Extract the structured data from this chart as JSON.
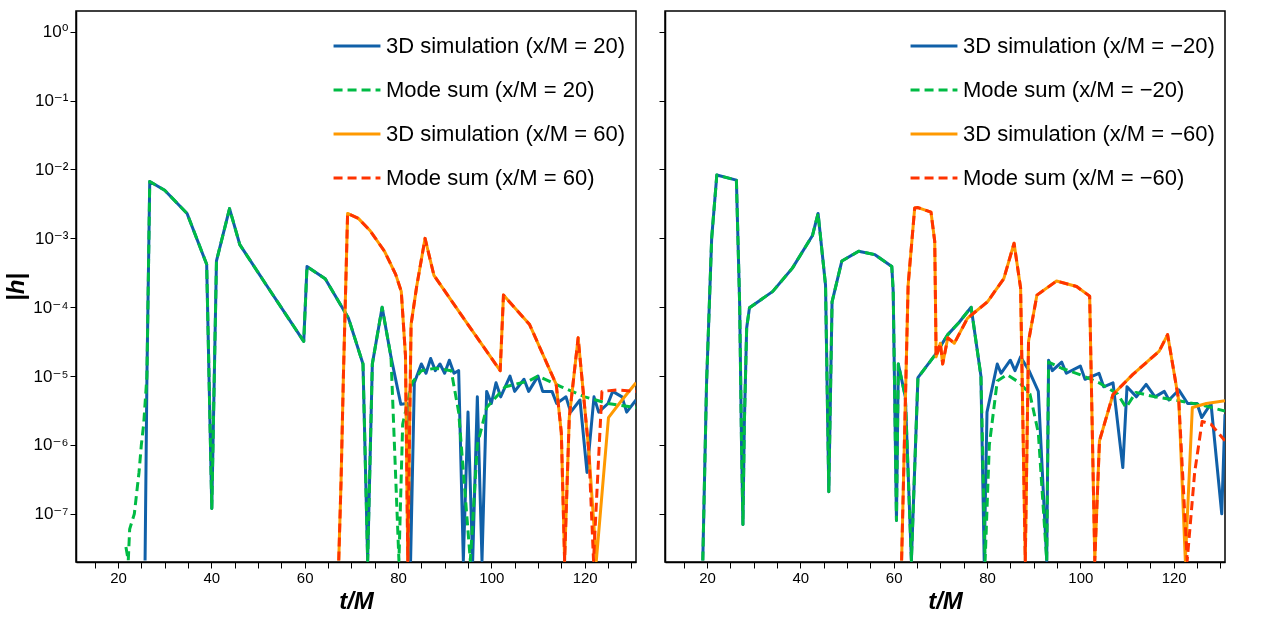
{
  "chart_data": [
    {
      "type": "line",
      "xlabel": "t/M",
      "ylabel": "|h|",
      "log": "y",
      "legend": "top right",
      "grid": false,
      "xlim": [
        11,
        131
      ],
      "xticks": [
        {
          "value": 15,
          "label": null
        },
        20,
        {
          "value": 25,
          "label": null
        },
        {
          "value": 30,
          "label": null
        },
        {
          "value": 35,
          "label": null
        },
        40,
        {
          "value": 45,
          "label": null
        },
        {
          "value": 50,
          "label": null
        },
        {
          "value": 55,
          "label": null
        },
        60,
        {
          "value": 65,
          "label": null
        },
        {
          "value": 70,
          "label": null
        },
        {
          "value": 75,
          "label": null
        },
        80,
        {
          "value": 85,
          "label": null
        },
        {
          "value": 90,
          "label": null
        },
        {
          "value": 95,
          "label": null
        },
        100,
        {
          "value": 105,
          "label": null
        },
        {
          "value": 110,
          "label": null
        },
        {
          "value": 115,
          "label": null
        },
        120,
        {
          "value": 125,
          "label": null
        },
        {
          "value": 130,
          "label": null
        }
      ],
      "ylim": [
        2e-08,
        2
      ],
      "yticks": [
        {
          "value": 1e-07,
          "label": "10⁻⁷"
        },
        {
          "value": 1e-06,
          "label": "10⁻⁶"
        },
        {
          "value": 1e-05,
          "label": "10⁻⁵"
        },
        {
          "value": 0.0001,
          "label": "10⁻⁴"
        },
        {
          "value": 0.001,
          "label": "10⁻³"
        },
        {
          "value": 0.01,
          "label": "10⁻²"
        },
        {
          "value": 0.1,
          "label": "10⁻¹"
        },
        {
          "value": 1,
          "label": "10⁰"
        }
      ],
      "series": [
        {
          "name": "3D simulation (x/M = 20)",
          "color": "#1060a8",
          "line_style": "solid",
          "x": [
            25.8,
            26.2,
            26.8,
            30,
            34.8,
            39.0,
            40.1,
            41.1,
            43.9,
            46.1,
            52,
            59.8,
            60.5,
            64.4,
            69.4,
            72.5,
            73.5,
            74.5,
            76.6,
            78.5,
            80.6,
            82.0,
            82.7,
            83.5,
            85,
            86,
            87,
            88,
            89,
            90,
            91,
            92,
            93,
            94,
            95,
            96,
            97,
            98,
            99,
            100,
            101,
            102,
            104,
            105,
            107,
            108,
            110,
            111,
            113,
            114,
            116,
            117,
            119,
            120.5,
            122,
            123,
            125,
            126,
            128,
            129,
            131
          ],
          "values": [
            2.1e-08,
            1e-05,
            0.0067,
            0.005,
            0.0023,
            0.00042,
            1.2e-07,
            0.00047,
            0.0027,
            0.00081,
            0.0002,
            3.2e-05,
            0.00039,
            0.00026,
            6.9e-05,
            1.5e-05,
            2.1e-08,
            1.5e-05,
            0.0001,
            1.9e-05,
            3.9e-06,
            4e-06,
            2.1e-08,
            8e-06,
            1.5e-05,
            1.1e-05,
            1.8e-05,
            1.2e-05,
            1.5e-05,
            1.1e-05,
            1.7e-05,
            1.1e-05,
            1.2e-05,
            2.1e-08,
            3e-06,
            2.1e-08,
            5e-06,
            2.1e-08,
            6e-06,
            4e-06,
            8e-06,
            5e-06,
            1e-05,
            6e-06,
            9e-06,
            6e-06,
            1e-05,
            6e-06,
            6e-06,
            4e-06,
            5e-06,
            3e-06,
            4.5e-06,
            4e-07,
            5e-06,
            3e-06,
            4e-06,
            6e-06,
            5e-06,
            3e-06,
            4.5e-06
          ]
        },
        {
          "name": "Mode sum (x/M = 20)",
          "color": "#00bb44",
          "line_style": "dashed",
          "x": [
            21.7,
            22.2,
            22.5,
            23.5,
            24.5,
            25,
            25.5,
            26.2,
            26.8,
            30,
            34.8,
            39.0,
            40.1,
            41.1,
            43.9,
            46.1,
            52,
            59.8,
            60.5,
            64.4,
            69.4,
            72.5,
            73.5,
            74.5,
            76.6,
            78.5,
            80.2,
            81.0,
            83,
            85,
            88,
            91.4,
            93,
            95.5,
            97,
            99,
            103,
            108,
            110,
            115,
            120,
            125,
            131
          ],
          "values": [
            3.3e-08,
            2.1e-08,
            6e-08,
            1e-07,
            4e-07,
            1e-06,
            2e-06,
            1e-05,
            0.0067,
            0.005,
            0.0023,
            0.00042,
            1.2e-07,
            0.00047,
            0.0027,
            0.00081,
            0.0002,
            3.2e-05,
            0.00039,
            0.00026,
            6.9e-05,
            1.5e-05,
            2.1e-08,
            1.5e-05,
            0.0001,
            1.9e-05,
            2.1e-08,
            2e-06,
            8e-06,
            1.2e-05,
            1.3e-05,
            1.2e-05,
            3e-06,
            2.1e-08,
            1e-06,
            3.5e-06,
            7e-06,
            8.5e-06,
            1e-05,
            7e-06,
            5e-06,
            4e-06,
            3.5e-06
          ]
        },
        {
          "name": "3D simulation (x/M = 60)",
          "color": "#ff9900",
          "line_style": "solid",
          "x": [
            67.3,
            67.8,
            68.3,
            69.2,
            71.5,
            74,
            77.1,
            79.5,
            80.7,
            81.6,
            82.1,
            82.8,
            84,
            85.8,
            87.7,
            95,
            101.9,
            102.6,
            108.2,
            113.9,
            115.0,
            115.7,
            116.7,
            118.6,
            120.9,
            122.5,
            125.1,
            128,
            131
          ],
          "values": [
            2.1e-08,
            3e-07,
            1e-05,
            0.0023,
            0.00195,
            0.0013,
            0.00065,
            0.0003,
            0.00017,
            2e-05,
            2.1e-08,
            5.6e-05,
            0.0002,
            0.001,
            0.00029,
            5.6e-05,
            1.2e-05,
            0.00015,
            5.6e-05,
            7.6e-06,
            1.5e-06,
            2.1e-08,
            2.5e-06,
            3.6e-05,
            8e-07,
            2.1e-08,
            2.5e-06,
            4.5e-06,
            8e-06
          ]
        },
        {
          "name": "Mode sum (x/M = 60)",
          "color": "#ff3300",
          "line_style": "dashed",
          "x": [
            67.3,
            67.8,
            68.3,
            69.2,
            71.5,
            74,
            77.1,
            79.5,
            80.7,
            81.6,
            82.1,
            82.8,
            84,
            85.8,
            87.7,
            95,
            101.9,
            102.6,
            108.2,
            113.9,
            115.0,
            115.7,
            116.7,
            118.6,
            120.9,
            121.9,
            123.7,
            127,
            131
          ],
          "values": [
            2.1e-08,
            3e-07,
            1e-05,
            0.0023,
            0.00195,
            0.0013,
            0.00065,
            0.0003,
            0.00017,
            2e-05,
            2.1e-08,
            5.6e-05,
            0.0002,
            0.001,
            0.00029,
            5.6e-05,
            1.2e-05,
            0.00015,
            5.6e-05,
            7.6e-06,
            1.5e-06,
            2.1e-08,
            2.5e-06,
            3.6e-05,
            8e-07,
            2.1e-08,
            6e-06,
            6.3e-06,
            6e-06
          ]
        }
      ]
    },
    {
      "type": "line",
      "xlabel": "t/M",
      "log": "y",
      "legend": "top right",
      "grid": false,
      "tick_labels": "x",
      "xlim": [
        11,
        131
      ],
      "xticks": [
        {
          "value": 15,
          "label": null
        },
        20,
        {
          "value": 25,
          "label": null
        },
        {
          "value": 30,
          "label": null
        },
        {
          "value": 35,
          "label": null
        },
        40,
        {
          "value": 45,
          "label": null
        },
        {
          "value": 50,
          "label": null
        },
        {
          "value": 55,
          "label": null
        },
        60,
        {
          "value": 65,
          "label": null
        },
        {
          "value": 70,
          "label": null
        },
        {
          "value": 75,
          "label": null
        },
        80,
        {
          "value": 85,
          "label": null
        },
        {
          "value": 90,
          "label": null
        },
        {
          "value": 95,
          "label": null
        },
        100,
        {
          "value": 105,
          "label": null
        },
        {
          "value": 110,
          "label": null
        },
        {
          "value": 115,
          "label": null
        },
        120,
        {
          "value": 125,
          "label": null
        },
        {
          "value": 130,
          "label": null
        }
      ],
      "ylim": [
        2e-08,
        2
      ],
      "yticks": [
        {
          "value": 1e-07,
          "label": null
        },
        {
          "value": 1e-06,
          "label": null
        },
        {
          "value": 1e-05,
          "label": null
        },
        {
          "value": 0.0001,
          "label": null
        },
        {
          "value": 0.001,
          "label": null
        },
        {
          "value": 0.01,
          "label": null
        },
        {
          "value": 0.1,
          "label": null
        },
        {
          "value": 1,
          "label": null
        }
      ],
      "series": [
        {
          "name": "3D simulation (x/M = −20)",
          "color": "#1060a8",
          "line_style": "solid",
          "x": [
            19.1,
            19.9,
            21,
            22.1,
            26.3,
            27.0,
            27.4,
            27.7,
            28.0,
            28.5,
            29.1,
            34.1,
            38.3,
            42.6,
            43.8,
            45.4,
            46.1,
            46.8,
            48.9,
            52.5,
            56,
            59.6,
            59.9,
            60.6,
            61.0,
            62.5,
            63.8,
            65.2,
            68.8,
            71.6,
            74,
            76.6,
            78.7,
            79.4,
            80,
            82.2,
            83,
            85,
            86,
            87.2,
            89,
            91,
            92.8,
            93.2,
            94,
            96,
            97,
            100,
            101,
            104,
            105,
            107,
            109.1,
            110,
            112,
            114.1,
            116,
            118,
            119,
            121.1,
            123,
            125,
            126,
            128,
            130.3,
            131
          ],
          "values": [
            2.1e-08,
            7.6e-06,
            0.001,
            0.0083,
            0.007,
            0.00011,
            1e-06,
            7e-08,
            2e-06,
            5e-05,
            9.8e-05,
            0.00017,
            0.00037,
            0.0011,
            0.0023,
            0.00021,
            2.1e-07,
            0.00012,
            0.00047,
            0.00065,
            0.00058,
            0.00039,
            0.00017,
            8e-08,
            1.5e-05,
            5e-06,
            2.1e-08,
            9.5e-06,
            2e-05,
            4e-05,
            6e-05,
            0.0001,
            1e-05,
            2.1e-08,
            3e-06,
            1.5e-05,
            1.1e-05,
            1.7e-05,
            1.2e-05,
            1.9e-05,
            1.2e-05,
            6e-06,
            2.1e-08,
            1.7e-05,
            1.2e-05,
            1.6e-05,
            1.1e-05,
            1.4e-05,
            9e-06,
            1.1e-05,
            7e-06,
            8e-06,
            4.7e-07,
            7e-06,
            5e-06,
            7.6e-06,
            5e-06,
            6e-06,
            4.5e-06,
            6.3e-06,
            4e-06,
            4e-06,
            2.5e-06,
            4e-06,
            1e-07,
            2.8e-06
          ]
        },
        {
          "name": "Mode sum (x/M = −20)",
          "color": "#00bb44",
          "line_style": "dashed",
          "x": [
            19.1,
            19.9,
            21,
            22.1,
            26.3,
            27.0,
            27.4,
            27.7,
            28.0,
            28.5,
            29.1,
            34.1,
            38.3,
            42.6,
            43.8,
            45.4,
            46.1,
            46.8,
            48.9,
            52.5,
            56,
            59.6,
            59.9,
            60.6,
            61.0,
            62.5,
            63.8,
            65.2,
            68.8,
            71.6,
            74,
            76.6,
            78.7,
            79.6,
            80.5,
            82.2,
            84.3,
            87,
            89.2,
            91,
            92.8,
            93.2,
            96,
            99.9,
            104,
            108,
            109.8,
            111.9,
            116,
            121.1,
            126,
            131
          ],
          "values": [
            2.1e-08,
            7.6e-06,
            0.001,
            0.0083,
            0.007,
            0.00011,
            1e-06,
            7e-08,
            2e-06,
            5e-05,
            9.8e-05,
            0.00017,
            0.00037,
            0.0011,
            0.0023,
            0.00021,
            2.1e-07,
            0.00012,
            0.00047,
            0.00065,
            0.00058,
            0.00039,
            0.00017,
            8e-08,
            1.5e-05,
            5e-06,
            2.1e-08,
            9.5e-06,
            2e-05,
            4e-05,
            6e-05,
            0.0001,
            1e-05,
            2.1e-08,
            1e-06,
            8.5e-06,
            1.05e-05,
            8e-06,
            5.5e-06,
            1.5e-06,
            2.1e-08,
            1.6e-05,
            1.3e-05,
            1.05e-05,
            8e-06,
            5.5e-06,
            3.5e-06,
            5.8e-06,
            5e-06,
            4.4e-06,
            3.8e-06,
            3.1e-06
          ]
        },
        {
          "name": "3D simulation (x/M = −60)",
          "color": "#ff9900",
          "line_style": "solid",
          "x": [
            61.7,
            63.1,
            64.5,
            65.2,
            68.0,
            68.8,
            69.1,
            70,
            70.5,
            71.6,
            73,
            75.8,
            80.1,
            83.6,
            85.8,
            87.2,
            88.2,
            88.9,
            90.7,
            94.9,
            99.2,
            102.0,
            103.1,
            104.1,
            107.0,
            111.2,
            116.9,
            118.7,
            121.1,
            122.5,
            124.0,
            127,
            131
          ],
          "values": [
            2.1e-08,
            0.00021,
            0.00275,
            0.0028,
            0.0024,
            0.0009,
            1.9e-05,
            3e-05,
            1.5e-05,
            3.6e-05,
            3e-05,
            6.9e-05,
            0.00012,
            0.00026,
            0.00085,
            0.00019,
            2.1e-08,
            3.2e-05,
            0.00015,
            0.00024,
            0.0002,
            0.000145,
            2.1e-08,
            1.15e-06,
            5.4e-06,
            1.05e-05,
            2.3e-05,
            4e-05,
            4.4e-06,
            2.1e-08,
            3.5e-06,
            4e-06,
            4.4e-06
          ]
        },
        {
          "name": "Mode sum (x/M = −60)",
          "color": "#ff3300",
          "line_style": "dashed",
          "x": [
            61.7,
            63.1,
            64.5,
            65.2,
            68.0,
            68.8,
            69.1,
            70,
            70.5,
            71.6,
            73,
            75.8,
            80.1,
            83.6,
            85.8,
            87.2,
            88.2,
            88.9,
            90.7,
            94.9,
            99.2,
            102.0,
            103.1,
            104.1,
            107.0,
            111.2,
            116.9,
            118.7,
            121.1,
            122.9,
            124.5,
            126.1,
            128,
            131
          ],
          "values": [
            2.1e-08,
            0.00021,
            0.00275,
            0.0028,
            0.0024,
            0.0009,
            1.9e-05,
            3e-05,
            1.5e-05,
            3.6e-05,
            3e-05,
            6.9e-05,
            0.00012,
            0.00026,
            0.00085,
            0.00019,
            2.1e-08,
            3.2e-05,
            0.00015,
            0.00024,
            0.0002,
            0.000145,
            2.1e-08,
            1.15e-06,
            5.4e-06,
            1.05e-05,
            2.3e-05,
            4e-05,
            4.4e-06,
            2.1e-08,
            4e-07,
            2.2e-06,
            2e-06,
            1.15e-06
          ]
        }
      ]
    }
  ]
}
